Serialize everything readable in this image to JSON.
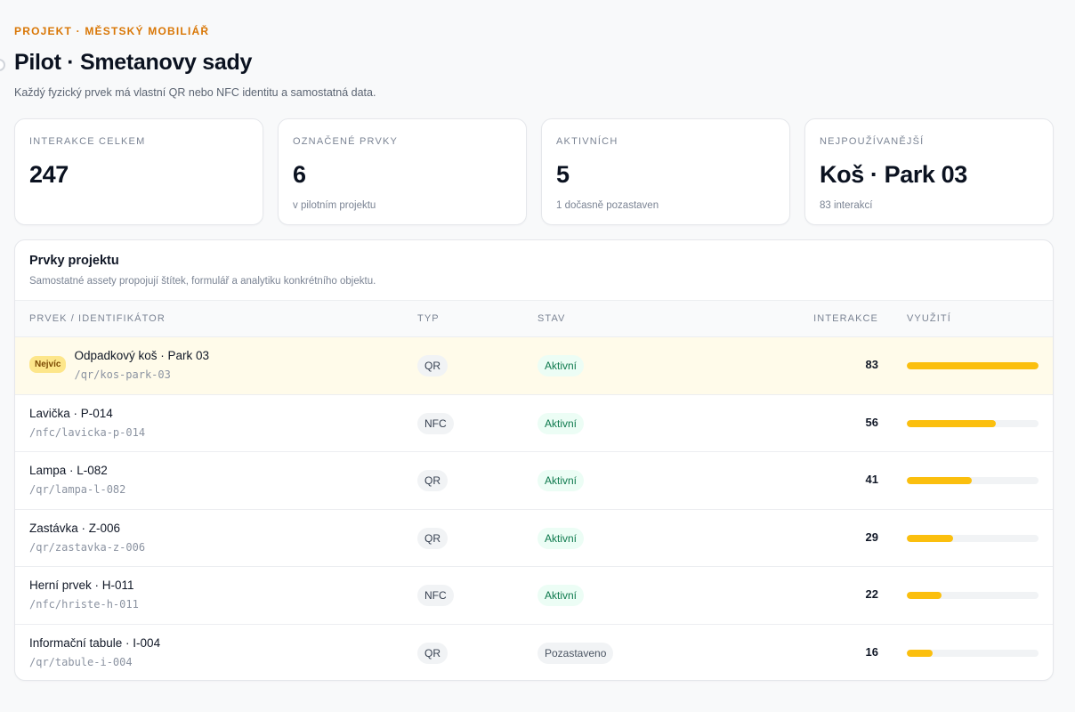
{
  "header": {
    "eyebrow": "PROJEKT · MĚSTSKÝ MOBILIÁŘ",
    "title": "Pilot · Smetanovy sady",
    "subtitle": "Každý fyzický prvek má vlastní QR nebo NFC identitu a samostatná data."
  },
  "stats": [
    {
      "label": "INTERAKCE CELKEM",
      "value": "247",
      "note": ""
    },
    {
      "label": "OZNAČENÉ PRVKY",
      "value": "6",
      "note": "v pilotním projektu"
    },
    {
      "label": "AKTIVNÍCH",
      "value": "5",
      "note": "1 dočasně pozastaven"
    },
    {
      "label": "NEJPOUŽÍVANĚJŠÍ",
      "value": "Koš · Park 03",
      "note": "83 interakcí"
    }
  ],
  "panel": {
    "title": "Prvky projektu",
    "subtitle": "Samostatné assety propojují štítek, formulář a analytiku konkrétního objektu.",
    "columns": {
      "item": "PRVEK / IDENTIFIKÁTOR",
      "type": "TYP",
      "status": "STAV",
      "interactions": "INTERAKCE",
      "usage": "VYUŽITÍ"
    },
    "top_badge": "Nejvíc",
    "rows": [
      {
        "name": "Odpadkový koš · Park 03",
        "path": "/qr/kos-park-03",
        "type": "QR",
        "status": "Aktivní",
        "interactions": "83",
        "usage": 1.0
      },
      {
        "name": "Lavička · P-014",
        "path": "/nfc/lavicka-p-014",
        "type": "NFC",
        "status": "Aktivní",
        "interactions": "56",
        "usage": 0.675
      },
      {
        "name": "Lampa · L-082",
        "path": "/qr/lampa-l-082",
        "type": "QR",
        "status": "Aktivní",
        "interactions": "41",
        "usage": 0.494
      },
      {
        "name": "Zastávka · Z-006",
        "path": "/qr/zastavka-z-006",
        "type": "QR",
        "status": "Aktivní",
        "interactions": "29",
        "usage": 0.349
      },
      {
        "name": "Herní prvek · H-011",
        "path": "/nfc/hriste-h-011",
        "type": "NFC",
        "status": "Aktivní",
        "interactions": "22",
        "usage": 0.265
      },
      {
        "name": "Informační tabule · I-004",
        "path": "/qr/tabule-i-004",
        "type": "QR",
        "status": "Pozastaveno",
        "interactions": "16",
        "usage": 0.193
      }
    ]
  },
  "colors": {
    "accent": "#d97706",
    "bar": "#fbbf0e",
    "highlight_row": "#fffbea",
    "active_text": "#0f7a4e"
  }
}
